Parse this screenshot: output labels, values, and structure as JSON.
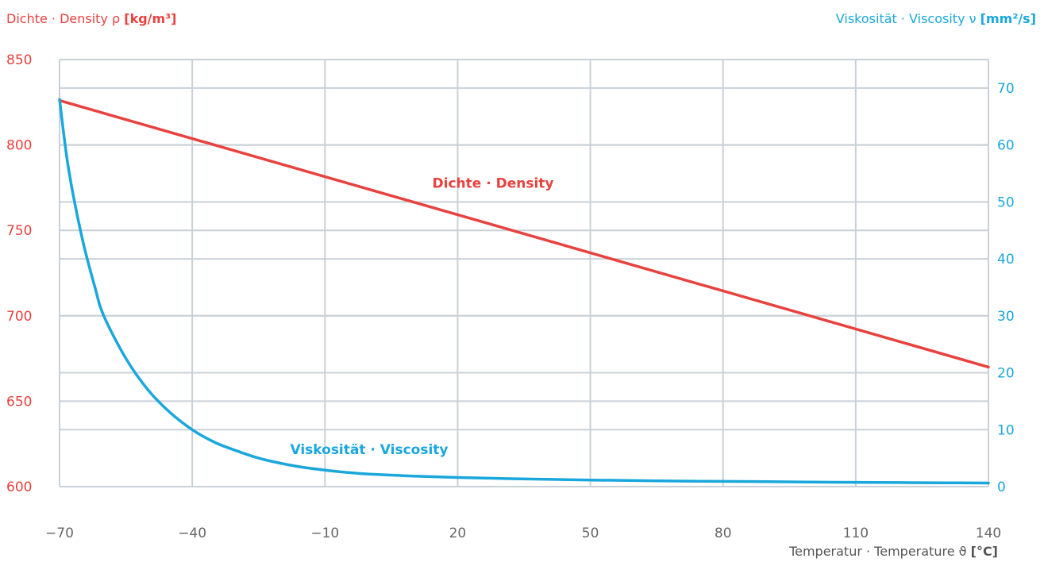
{
  "chart_data": {
    "type": "line",
    "left_axis": {
      "label": "Dichte · Density ρ",
      "unit": "[kg/m³]",
      "ylim": [
        600,
        850
      ],
      "ticks": [
        600,
        650,
        700,
        750,
        800,
        850
      ]
    },
    "right_axis": {
      "label": "Viskosität · Viscosity ν",
      "unit": "[mm²/s]",
      "ylim": [
        0,
        75
      ],
      "ticks": [
        0,
        10,
        20,
        30,
        40,
        50,
        60,
        70
      ]
    },
    "x_axis": {
      "label": "Temperatur · Temperature ϑ",
      "unit": "[°C]",
      "xlim": [
        -70,
        140
      ],
      "ticks": [
        -70,
        -40,
        -10,
        20,
        50,
        80,
        110,
        140
      ]
    },
    "grid": true,
    "series": [
      {
        "name": "Dichte · Density",
        "axis": "left",
        "color": "#e8423f",
        "x": [
          -70,
          140
        ],
        "values": [
          826,
          670
        ]
      },
      {
        "name": "Viskosität · Viscosity",
        "axis": "right",
        "color": "#1aa7dc",
        "x": [
          -70,
          -68,
          -65,
          -62,
          -60,
          -55,
          -50,
          -45,
          -40,
          -35,
          -30,
          -25,
          -20,
          -15,
          -10,
          -5,
          0,
          10,
          20,
          30,
          40,
          50,
          60,
          70,
          80,
          90,
          100,
          110,
          120,
          130,
          140
        ],
        "values": [
          68,
          56,
          44,
          35,
          30,
          22.5,
          17,
          13,
          10,
          7.8,
          6.3,
          5,
          4.1,
          3.4,
          2.9,
          2.5,
          2.2,
          1.85,
          1.6,
          1.42,
          1.28,
          1.16,
          1.06,
          0.98,
          0.92,
          0.86,
          0.8,
          0.75,
          0.71,
          0.67,
          0.63
        ]
      }
    ]
  }
}
